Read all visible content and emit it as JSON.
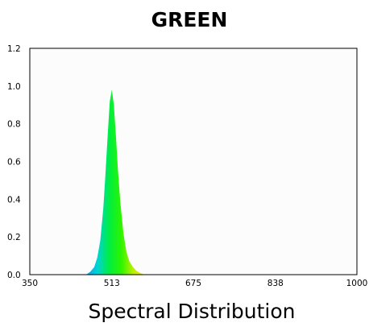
{
  "title": "GREEN",
  "caption": "Spectral Distribution",
  "colors": {
    "plot_background": "#fcfcfc",
    "axis": "#000000",
    "spectrum_stops": [
      "#00a6ff",
      "#00d4d0",
      "#00ee40",
      "#2cf400",
      "#b8f000",
      "#ffe800"
    ]
  },
  "chart_data": {
    "type": "area",
    "title": "GREEN",
    "xlabel": "Spectral Distribution",
    "ylabel": "",
    "xlim": [
      350,
      1000
    ],
    "ylim": [
      0,
      1.2
    ],
    "x_ticks": [
      "350",
      "513",
      "675",
      "838",
      "1000"
    ],
    "y_ticks": [
      "0.0",
      "0.2",
      "0.4",
      "0.6",
      "0.8",
      "1.0",
      "1.2"
    ],
    "grid": false,
    "series": [
      {
        "x": [
          462,
          470,
          478,
          484,
          490,
          496,
          500,
          505,
          509,
          513,
          517,
          521,
          525,
          530,
          536,
          542,
          548,
          555,
          562,
          570,
          578
        ],
        "y": [
          0.0,
          0.015,
          0.04,
          0.09,
          0.18,
          0.35,
          0.52,
          0.75,
          0.92,
          0.98,
          0.9,
          0.74,
          0.56,
          0.38,
          0.22,
          0.12,
          0.07,
          0.04,
          0.02,
          0.008,
          0.0
        ]
      }
    ]
  }
}
